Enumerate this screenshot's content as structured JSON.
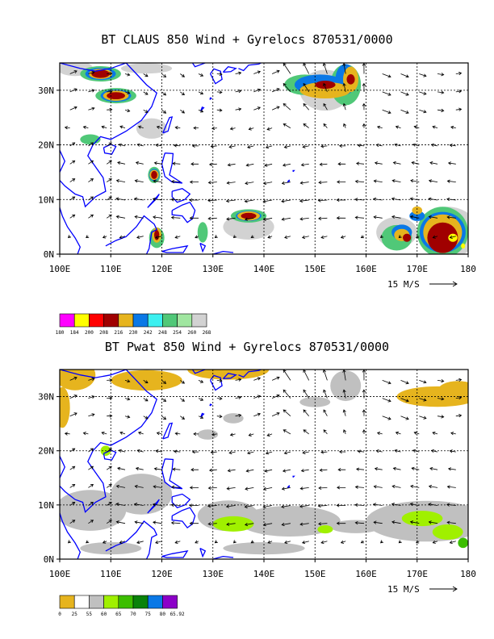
{
  "panels": [
    {
      "id": "claus",
      "title": "BT CLAUS 850 Wind + Gyrelocs 870531/0000",
      "y_labels": [
        "30N",
        "20N",
        "10N",
        "0N"
      ],
      "x_labels": [
        "100E",
        "110E",
        "120E",
        "130E",
        "140E",
        "150E",
        "160E",
        "170E",
        "180"
      ],
      "vector_ref": "15 M/S",
      "colorbar_labels": [
        "180",
        "184",
        "200",
        "208",
        "216",
        "230",
        "242",
        "248",
        "254",
        "260",
        "268"
      ],
      "colorbar_colors": [
        "#ff00ff",
        "#ffff00",
        "#ff0000",
        "#a00000",
        "#e6b41e",
        "#0a78e6",
        "#3cf0f0",
        "#50c878",
        "#a0e6a0",
        "#d2d2d2"
      ]
    },
    {
      "id": "pwat",
      "title": "BT Pwat 850 Wind + Gyrelocs 870531/0000",
      "y_labels": [
        "30N",
        "20N",
        "10N",
        "0N"
      ],
      "x_labels": [
        "100E",
        "110E",
        "120E",
        "130E",
        "140E",
        "150E",
        "160E",
        "170E",
        "180"
      ],
      "vector_ref": "15 M/S",
      "colorbar_labels": [
        "0",
        "25",
        "55",
        "60",
        "65",
        "70",
        "75",
        "80",
        "65.92"
      ],
      "colorbar_colors": [
        "#e6b41e",
        "#ffffff",
        "#c0c0c0",
        "#a0f000",
        "#3cbe00",
        "#0a820a",
        "#0a78e6",
        "#8c00c8"
      ]
    }
  ],
  "colors": {
    "coast": "#0000ff",
    "grid": "#000000",
    "claus_cloud": "#e6b41e",
    "pwat_dry": "#e6b41e",
    "pwat_moist": "#c0c0c0",
    "pwat_wet": "#a0f000"
  }
}
